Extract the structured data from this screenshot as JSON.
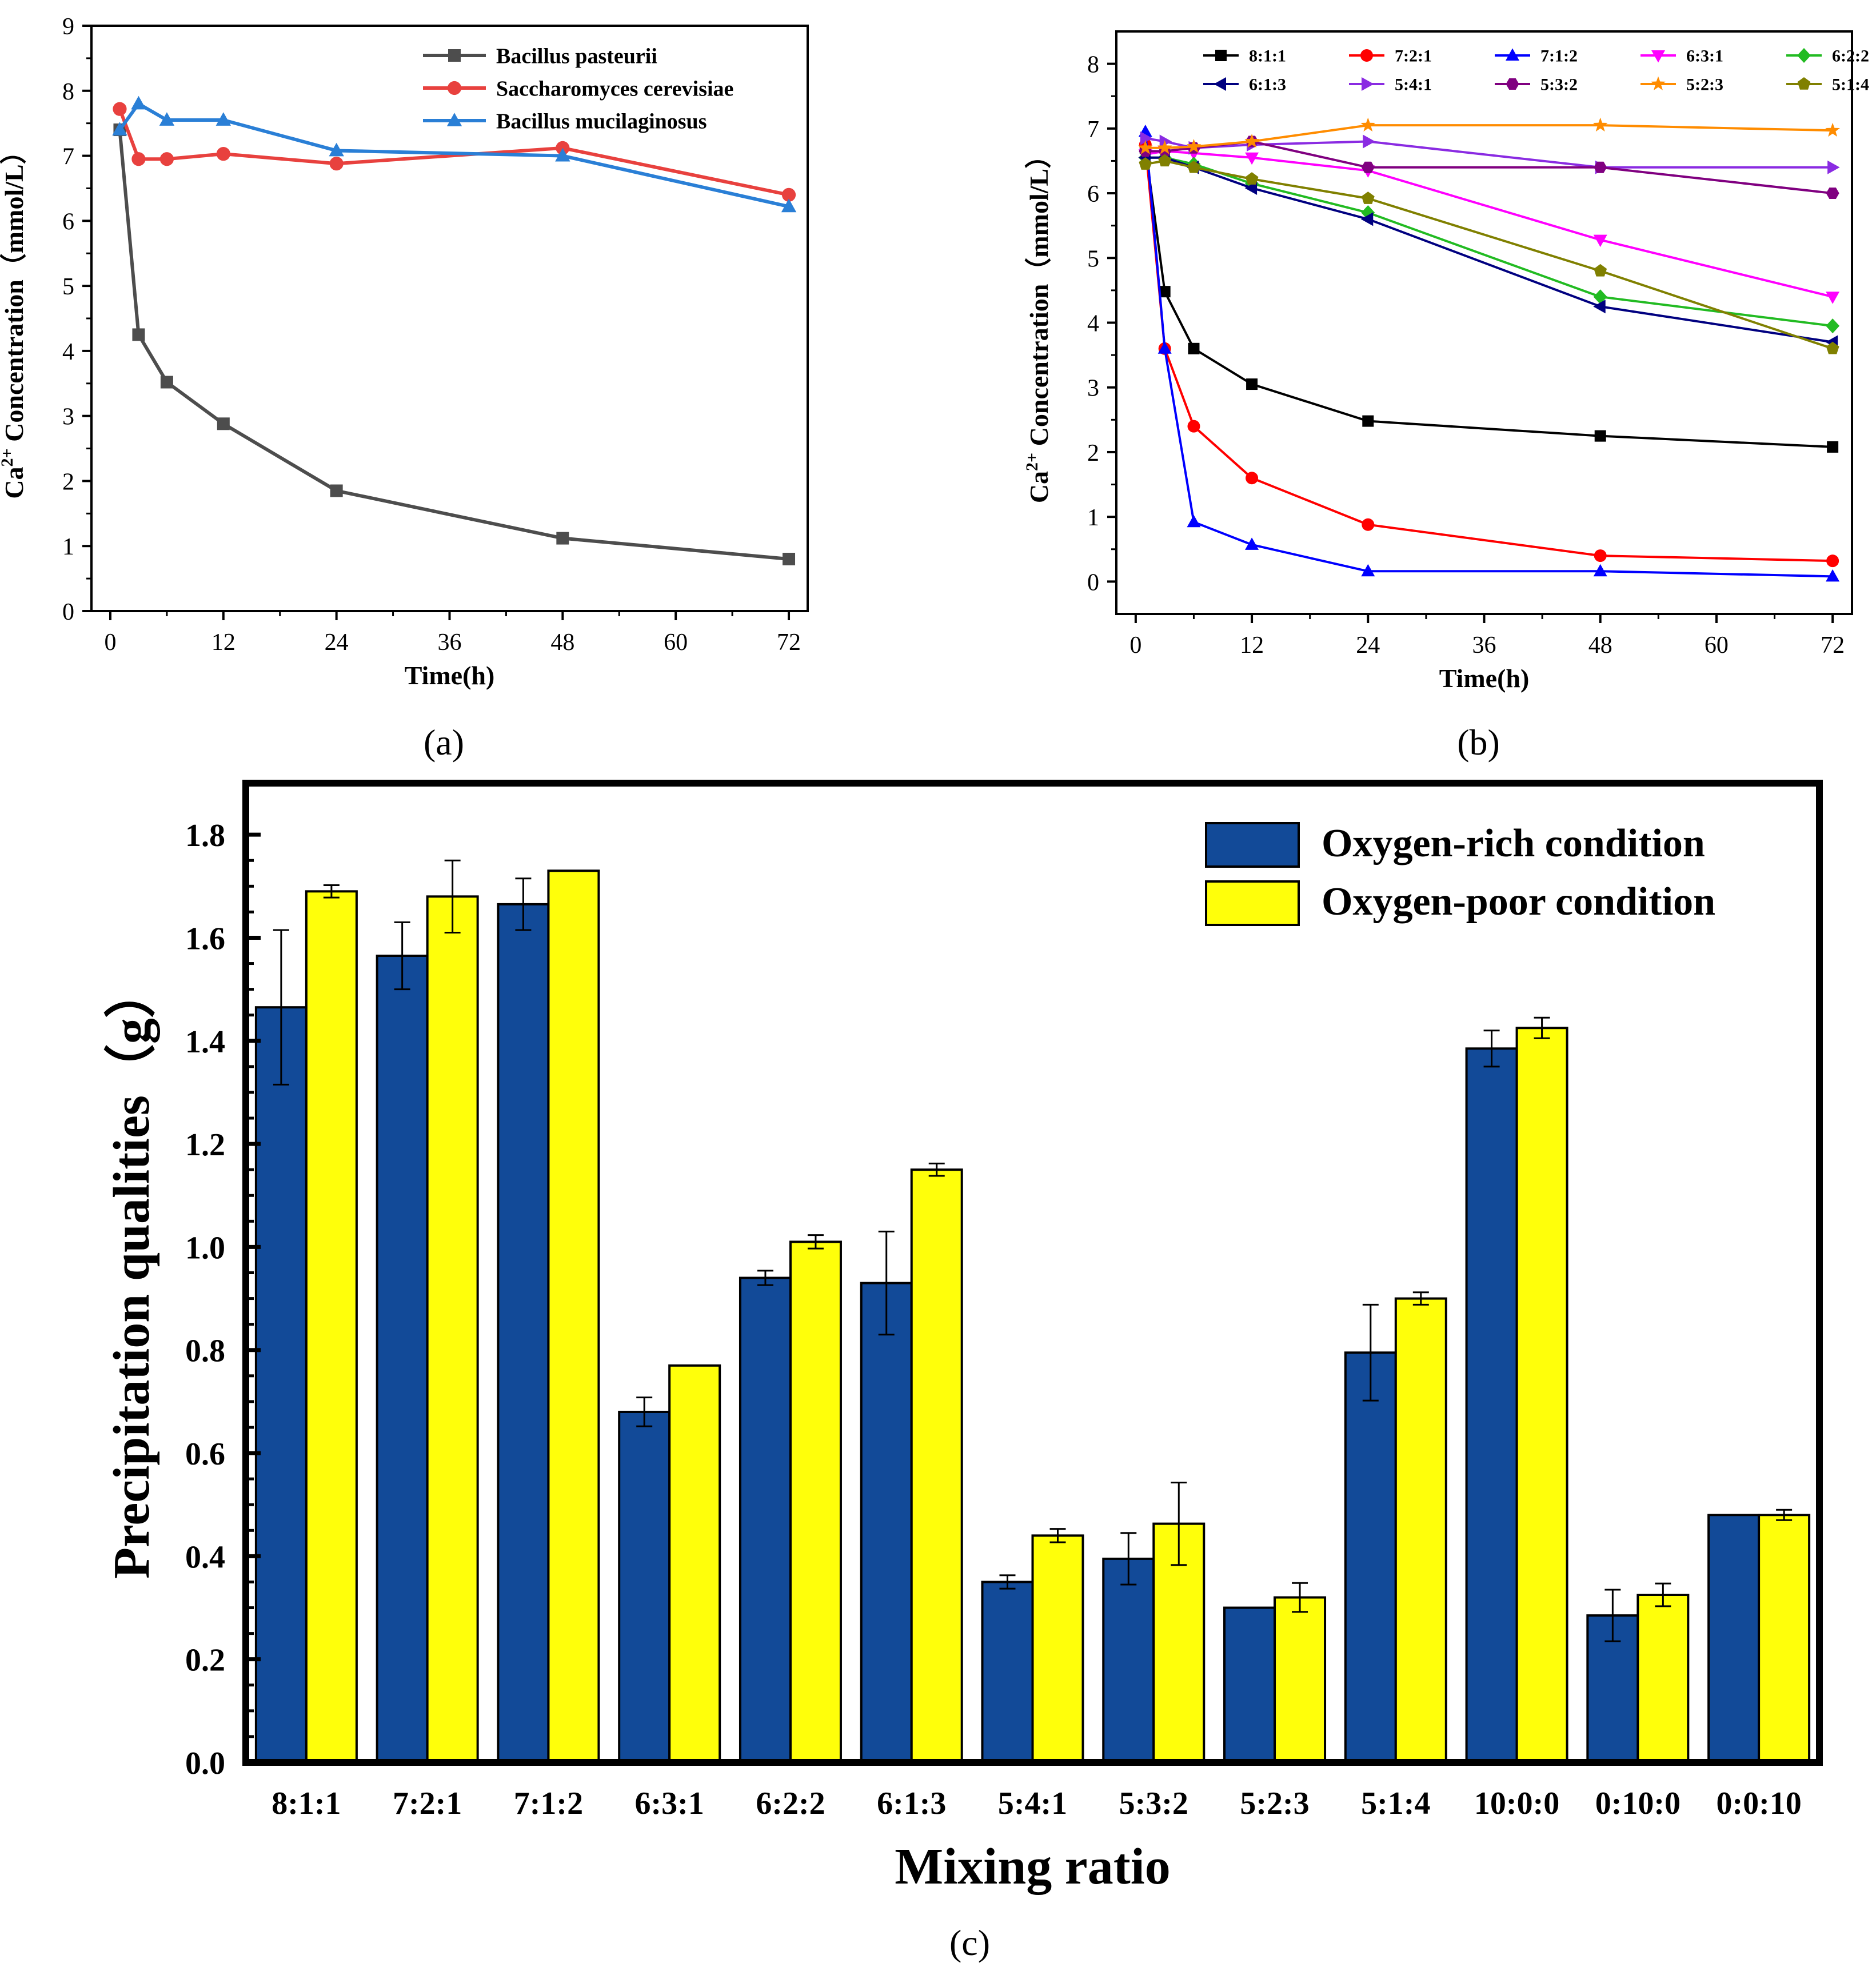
{
  "chart_data": [
    {
      "id": "a",
      "type": "line",
      "caption": "(a)",
      "xlabel": "Time(h)",
      "ylabel_main": "Ca",
      "ylabel_sup": "2+",
      "ylabel_rest": " Concentration（mmol/L）",
      "xlim": [
        -2,
        74
      ],
      "ylim": [
        0,
        9
      ],
      "xticks": [
        "0",
        "12",
        "24",
        "36",
        "48",
        "60",
        "72"
      ],
      "xtick_values": [
        0,
        12,
        24,
        36,
        48,
        60,
        72
      ],
      "yticks": [
        "0",
        "1",
        "2",
        "3",
        "4",
        "5",
        "6",
        "7",
        "8",
        "9"
      ],
      "ytick_values": [
        0,
        1,
        2,
        3,
        4,
        5,
        6,
        7,
        8,
        9
      ],
      "legend_position": "top-right",
      "x": [
        1,
        3,
        6,
        12,
        24,
        48,
        72
      ],
      "series": [
        {
          "name": "Bacillus pasteurii",
          "color": "#4d4d4d",
          "marker": "square",
          "values": [
            7.4,
            4.25,
            3.52,
            2.88,
            1.85,
            1.12,
            0.8
          ]
        },
        {
          "name": "Saccharomyces cerevisiae",
          "color": "#e8413e",
          "marker": "circle",
          "values": [
            7.72,
            6.95,
            6.95,
            7.03,
            6.88,
            7.12,
            6.4
          ]
        },
        {
          "name": "Bacillus mucilaginosus",
          "color": "#2a7fd6",
          "marker": "triangle-up",
          "values": [
            7.4,
            7.8,
            7.55,
            7.55,
            7.08,
            7.0,
            6.22
          ]
        }
      ]
    },
    {
      "id": "b",
      "type": "line",
      "caption": "(b)",
      "xlabel": "Time(h)",
      "ylabel_main": "Ca",
      "ylabel_sup": "2+",
      "ylabel_rest": " Concentration（mmol/L）",
      "xlim": [
        -2,
        74
      ],
      "ylim": [
        -0.5,
        8.5
      ],
      "xticks": [
        "0",
        "12",
        "24",
        "36",
        "48",
        "60",
        "72"
      ],
      "xtick_values": [
        0,
        12,
        24,
        36,
        48,
        60,
        72
      ],
      "yticks": [
        "0",
        "1",
        "2",
        "3",
        "4",
        "5",
        "6",
        "7",
        "8"
      ],
      "ytick_values": [
        0,
        1,
        2,
        3,
        4,
        5,
        6,
        7,
        8
      ],
      "legend_position": "top",
      "x": [
        1,
        3,
        6,
        12,
        24,
        48,
        72
      ],
      "series": [
        {
          "name": "8:1:1",
          "color": "#000000",
          "marker": "square",
          "values": [
            6.7,
            4.48,
            3.6,
            3.05,
            2.48,
            2.25,
            2.08
          ]
        },
        {
          "name": "7:2:1",
          "color": "#ff0000",
          "marker": "circle",
          "values": [
            6.75,
            3.6,
            2.4,
            1.6,
            0.88,
            0.4,
            0.32
          ]
        },
        {
          "name": "7:1:2",
          "color": "#0000ff",
          "marker": "triangle-up",
          "values": [
            6.95,
            3.6,
            0.92,
            0.57,
            0.16,
            0.16,
            0.08
          ]
        },
        {
          "name": "6:3:1",
          "color": "#ff00ff",
          "marker": "triangle-down",
          "values": [
            6.6,
            6.65,
            6.62,
            6.55,
            6.35,
            5.28,
            4.4
          ]
        },
        {
          "name": "6:2:2",
          "color": "#22bb22",
          "marker": "diamond",
          "values": [
            6.55,
            6.55,
            6.45,
            6.15,
            5.7,
            4.4,
            3.95
          ]
        },
        {
          "name": "6:1:3",
          "color": "#000080",
          "marker": "triangle-left",
          "values": [
            6.55,
            6.55,
            6.4,
            6.08,
            5.6,
            4.25,
            3.7
          ]
        },
        {
          "name": "5:4:1",
          "color": "#8a2be2",
          "marker": "triangle-right",
          "values": [
            6.85,
            6.8,
            6.7,
            6.75,
            6.8,
            6.4,
            6.4
          ]
        },
        {
          "name": "5:3:2",
          "color": "#800080",
          "marker": "hexagon",
          "values": [
            6.65,
            6.65,
            6.7,
            6.8,
            6.4,
            6.4,
            6.0
          ]
        },
        {
          "name": "5:2:3",
          "color": "#ff8c00",
          "marker": "star",
          "values": [
            6.7,
            6.7,
            6.72,
            6.8,
            7.05,
            7.05,
            6.97
          ]
        },
        {
          "name": "5:1:4",
          "color": "#808000",
          "marker": "pentagon",
          "values": [
            6.45,
            6.5,
            6.4,
            6.22,
            5.92,
            4.8,
            3.6
          ]
        }
      ]
    },
    {
      "id": "c",
      "type": "bar",
      "caption": "(c)",
      "xlabel": "Mixing ratio",
      "ylabel": "Precipitation qualities（g）",
      "ylim": [
        0,
        1.9
      ],
      "yticks": [
        "0.0",
        "0.2",
        "0.4",
        "0.6",
        "0.8",
        "1.0",
        "1.2",
        "1.4",
        "1.6",
        "1.8"
      ],
      "ytick_values": [
        0,
        0.2,
        0.4,
        0.6,
        0.8,
        1.0,
        1.2,
        1.4,
        1.6,
        1.8
      ],
      "legend_position": "top-right",
      "categories": [
        "8:1:1",
        "7:2:1",
        "7:1:2",
        "6:3:1",
        "6:2:2",
        "6:1:3",
        "5:4:1",
        "5:3:2",
        "5:2:3",
        "5:1:4",
        "10:0:0",
        "0:10:0",
        "0:0:10"
      ],
      "series": [
        {
          "name": "Oxygen-rich condition",
          "color": "#124a98",
          "values": [
            1.465,
            1.565,
            1.665,
            0.68,
            0.94,
            0.93,
            0.35,
            0.395,
            0.3,
            0.795,
            1.385,
            0.285,
            0.48
          ],
          "errors": [
            0.15,
            0.065,
            0.05,
            0.028,
            0.014,
            0.1,
            0.013,
            0.05,
            0,
            0.093,
            0.035,
            0.05,
            0
          ]
        },
        {
          "name": "Oxygen-poor condition",
          "color": "#ffff0a",
          "values": [
            1.69,
            1.68,
            1.73,
            0.77,
            1.01,
            1.15,
            0.44,
            0.463,
            0.32,
            0.9,
            1.425,
            0.325,
            0.48
          ],
          "errors": [
            0.012,
            0.07,
            0,
            0,
            0.013,
            0.012,
            0.013,
            0.08,
            0.028,
            0.012,
            0.02,
            0.022,
            0.01
          ]
        }
      ]
    }
  ]
}
